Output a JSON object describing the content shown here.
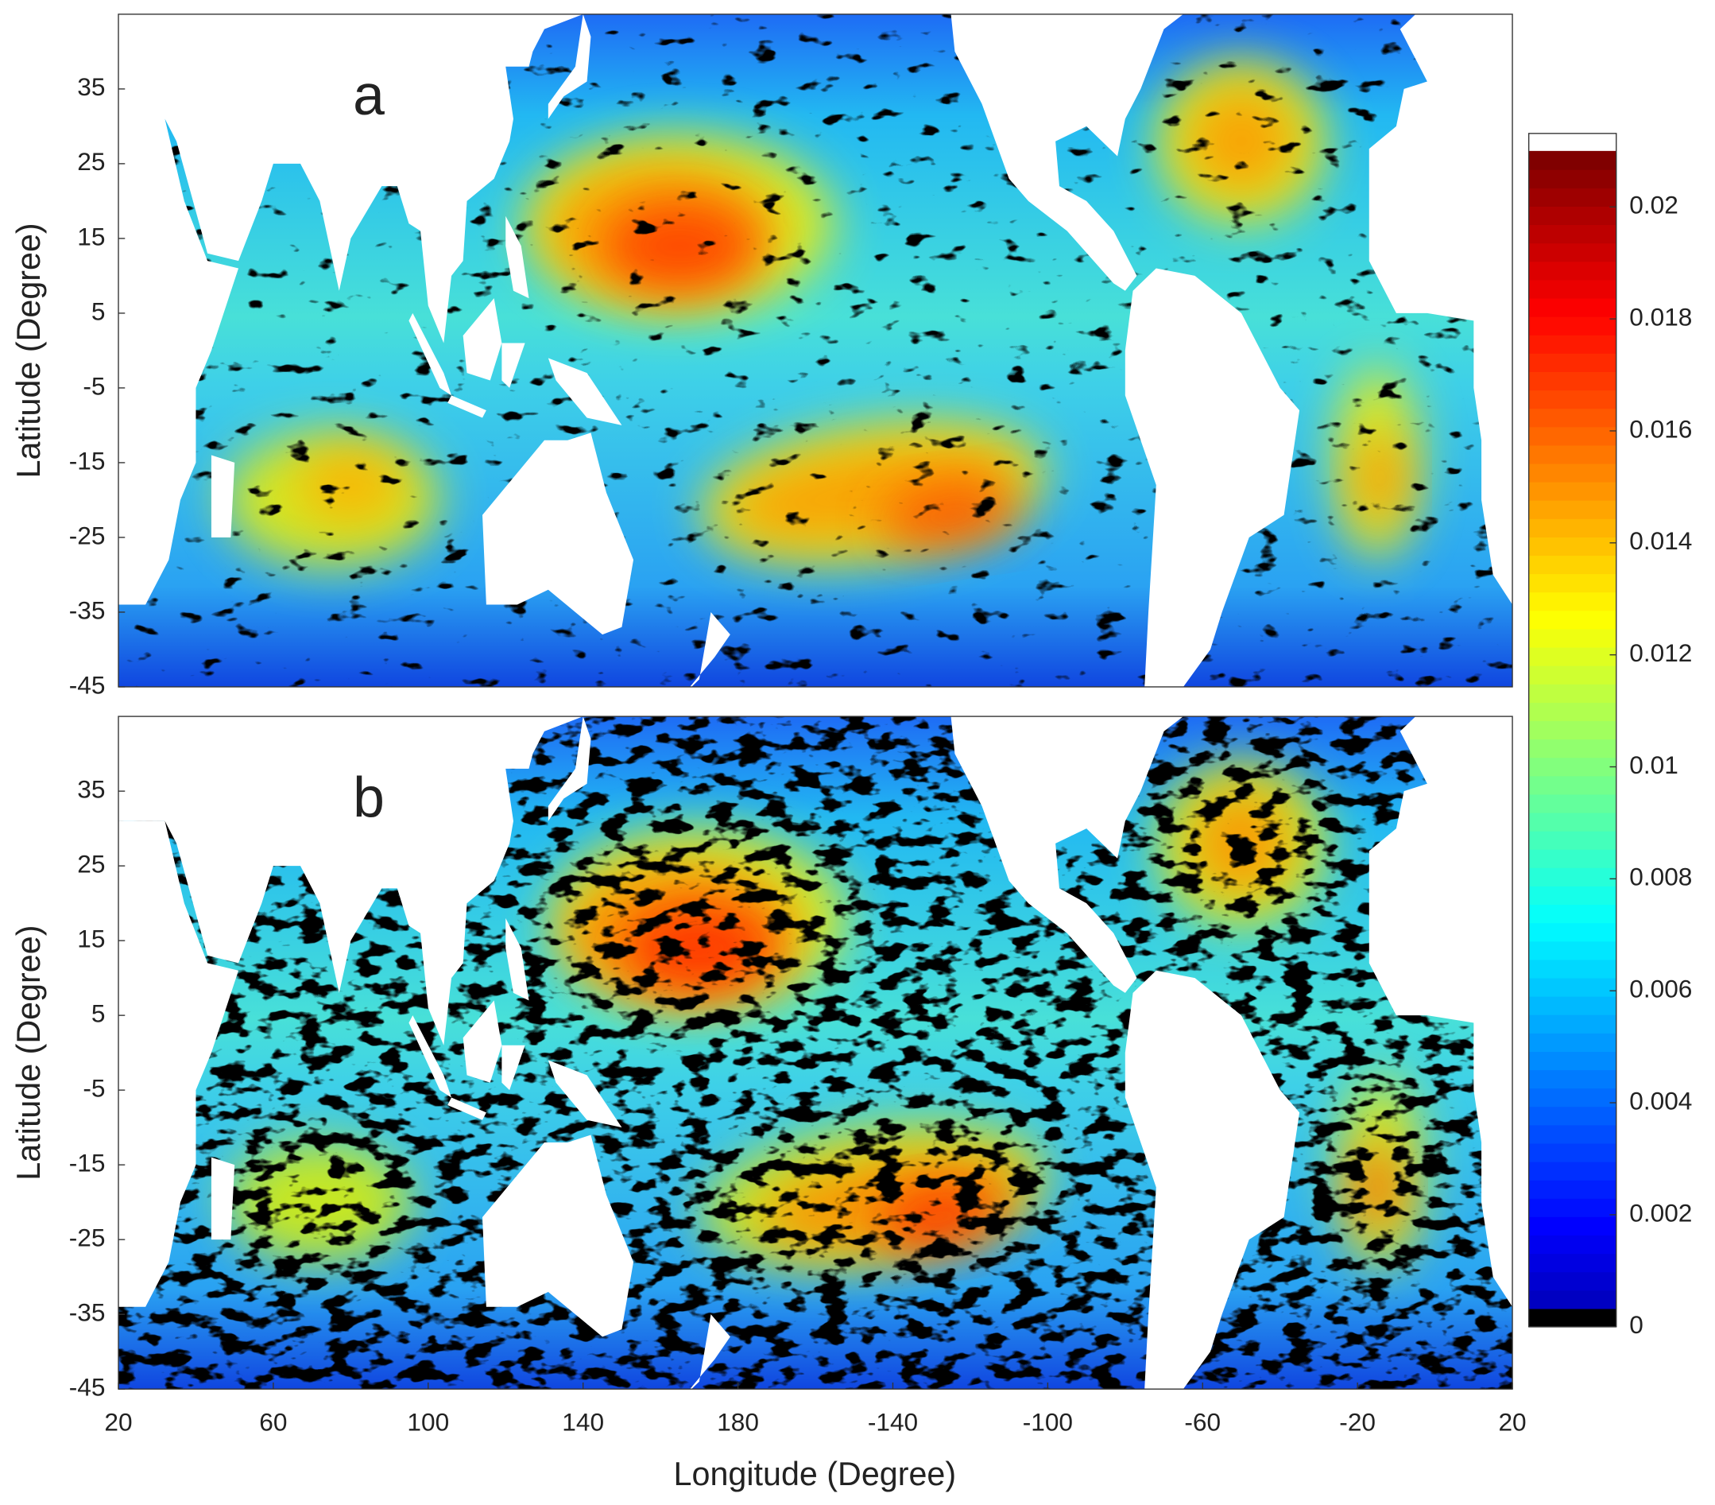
{
  "chart_data": {
    "type": "heatmap",
    "xlabel": "Longitude (Degree)",
    "ylabel": "Latitude (Degree)",
    "colormap": "jet",
    "panels": [
      {
        "label": "a"
      },
      {
        "label": "b"
      }
    ],
    "xlim": [
      20,
      380
    ],
    "xticks": [
      20,
      60,
      100,
      140,
      180,
      {
        "value": 220,
        "label": "-140"
      },
      {
        "value": 260,
        "label": "-100"
      },
      {
        "value": 300,
        "label": "-60"
      },
      {
        "value": 340,
        "label": "-20"
      },
      {
        "value": 380,
        "label": "20"
      }
    ],
    "ylim": [
      -45,
      45
    ],
    "yticks": [
      -45,
      -35,
      -25,
      -15,
      -5,
      5,
      15,
      25,
      35
    ],
    "colorbar": {
      "clim": [
        0,
        0.021
      ],
      "ticks": [
        0,
        0.002,
        0.004,
        0.006,
        0.008,
        0.01,
        0.012,
        0.014,
        0.016,
        0.018,
        0.02
      ]
    }
  }
}
